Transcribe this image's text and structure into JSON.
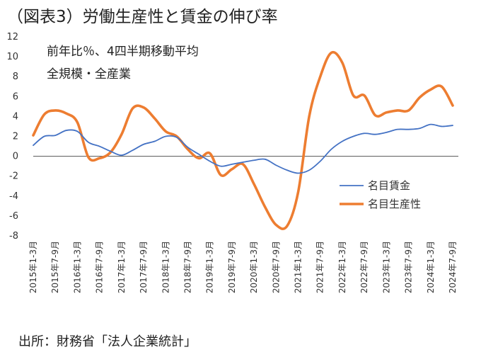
{
  "title": "（図表3）労働生産性と賃金の伸び率",
  "source": "出所：財務省「法人企業統計」",
  "chart_data": {
    "type": "line",
    "notes": [
      "前年比％、4四半期移動平均",
      "全規模・全産業"
    ],
    "ylim": [
      -8,
      12
    ],
    "yticks": [
      -8,
      -6,
      -4,
      -2,
      0,
      2,
      4,
      6,
      8,
      10,
      12
    ],
    "grid": false,
    "legend_position": "right-middle",
    "x_tick_labels": [
      "2015年1-3月",
      "2015年7-9月",
      "2016年1-3月",
      "2016年7-9月",
      "2017年1-3月",
      "2017年7-9月",
      "2018年1-3月",
      "2018年7-9月",
      "2019年1-3月",
      "2019年7-9月",
      "2020年1-3月",
      "2020年7-9月",
      "2021年1-3月",
      "2021年7-9月",
      "2022年1-3月",
      "2022年7-9月",
      "2023年1-3月",
      "2023年7-9月",
      "2024年1-3月",
      "2024年7-9月"
    ],
    "x": [
      "2015年1-3月",
      "2015年4-6月",
      "2015年7-9月",
      "2015年10-12月",
      "2016年1-3月",
      "2016年4-6月",
      "2016年7-9月",
      "2016年10-12月",
      "2017年1-3月",
      "2017年4-6月",
      "2017年7-9月",
      "2017年10-12月",
      "2018年1-3月",
      "2018年4-6月",
      "2018年7-9月",
      "2018年10-12月",
      "2019年1-3月",
      "2019年4-6月",
      "2019年7-9月",
      "2019年10-12月",
      "2020年1-3月",
      "2020年4-6月",
      "2020年7-9月",
      "2020年10-12月",
      "2021年1-3月",
      "2021年4-6月",
      "2021年7-9月",
      "2021年10-12月",
      "2022年1-3月",
      "2022年4-6月",
      "2022年7-9月",
      "2022年10-12月",
      "2023年1-3月",
      "2023年4-6月",
      "2023年7-9月",
      "2023年10-12月",
      "2024年1-3月",
      "2024年4-6月",
      "2024年7-9月"
    ],
    "series": [
      {
        "name": "名目賃金",
        "color": "#4472c4",
        "values": [
          1.1,
          2.0,
          2.1,
          2.6,
          2.5,
          1.4,
          1.0,
          0.5,
          0.1,
          0.6,
          1.2,
          1.5,
          2.0,
          1.9,
          0.9,
          0.2,
          -0.5,
          -1.0,
          -0.8,
          -0.6,
          -0.4,
          -0.3,
          -0.9,
          -1.4,
          -1.7,
          -1.4,
          -0.5,
          0.7,
          1.5,
          2.0,
          2.3,
          2.2,
          2.4,
          2.7,
          2.7,
          2.8,
          3.2,
          3.0,
          3.1
        ]
      },
      {
        "name": "名目生産性",
        "color": "#ed7d31",
        "values": [
          2.1,
          4.2,
          4.6,
          4.3,
          3.4,
          -0.1,
          -0.2,
          0.4,
          2.2,
          4.8,
          4.9,
          3.8,
          2.5,
          2.0,
          0.7,
          -0.2,
          0.3,
          -1.9,
          -1.3,
          -0.8,
          -2.8,
          -5.1,
          -6.9,
          -7.0,
          -3.6,
          4.0,
          8.0,
          10.4,
          9.4,
          6.1,
          6.1,
          4.1,
          4.4,
          4.6,
          4.6,
          5.9,
          6.7,
          7.0,
          5.1
        ]
      }
    ]
  }
}
